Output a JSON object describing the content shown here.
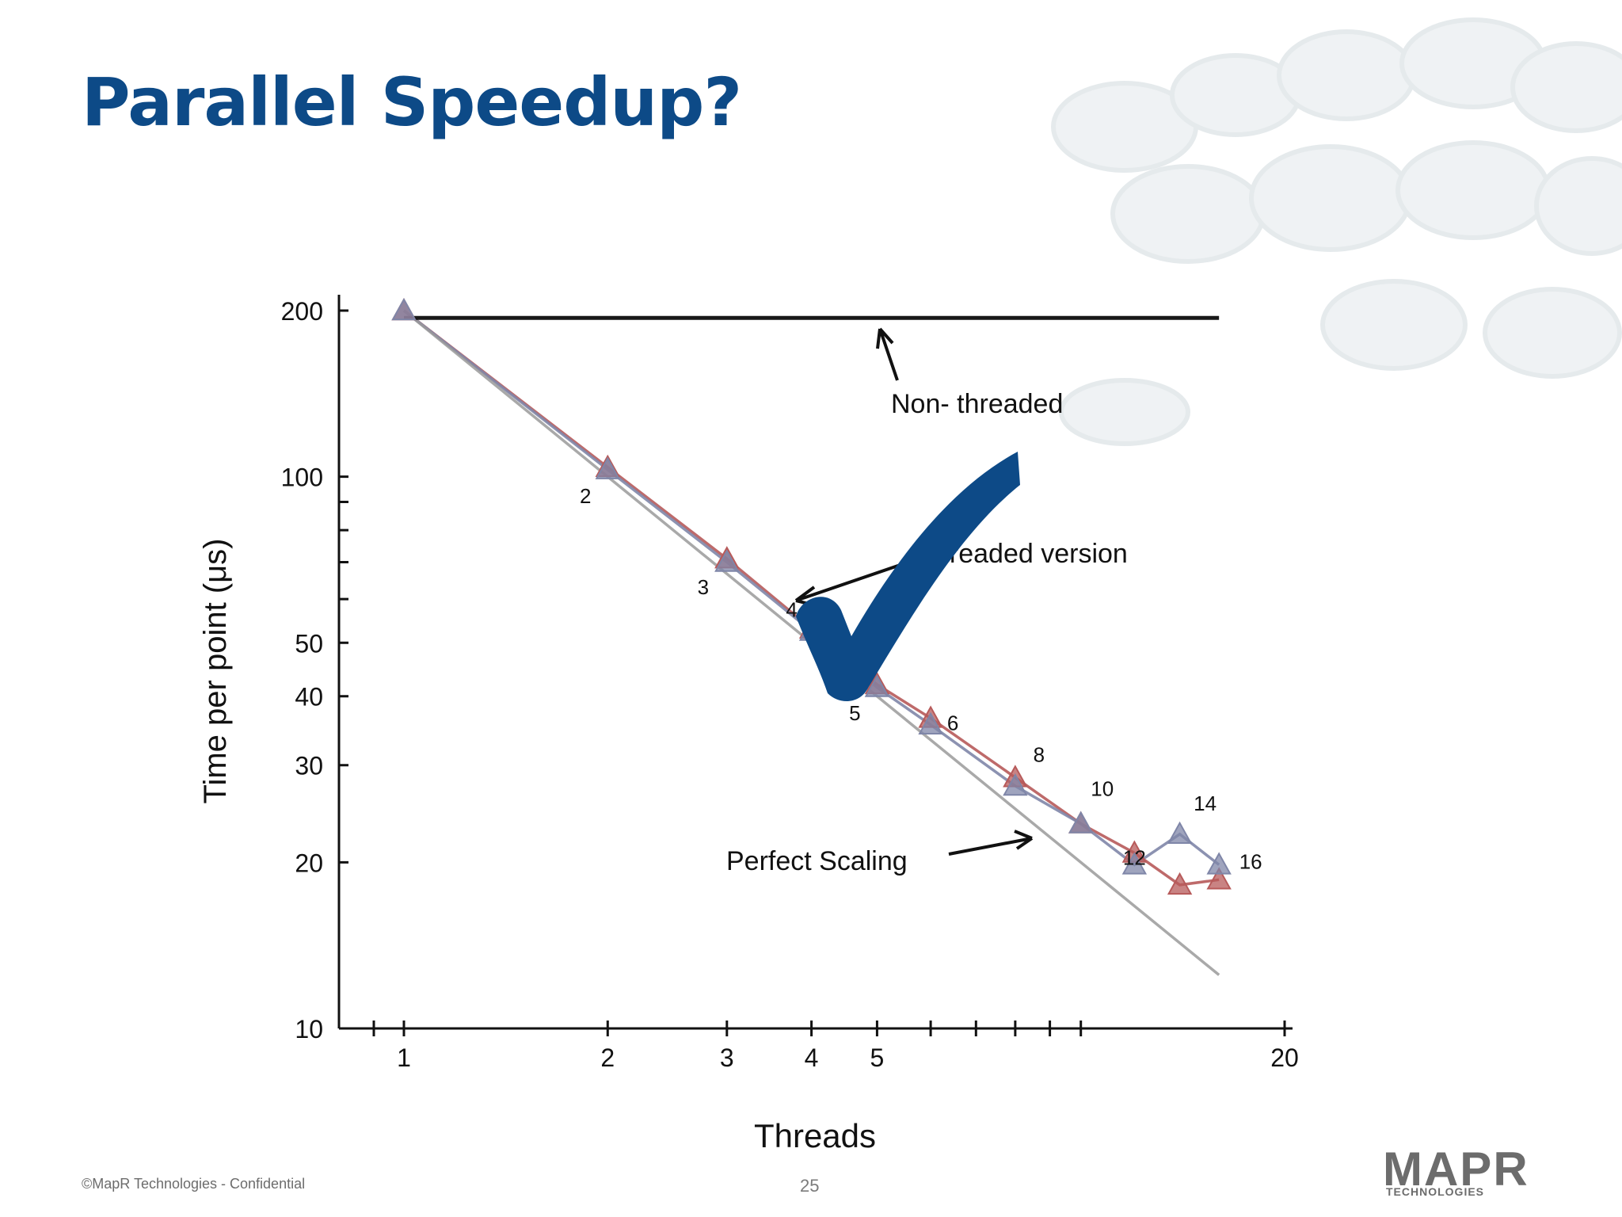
{
  "slide": {
    "title": "Parallel Speedup?",
    "footer_left": "©MapR Technologies - Confidential",
    "page_number": "25",
    "logo_text": "MAPR",
    "logo_sub": "TECHNOLOGIES",
    "title_color": "#0d4a87",
    "check_color": "#0d4a87"
  },
  "chart_data": {
    "type": "line",
    "title": "",
    "xlabel": "Threads",
    "ylabel": "Time per point (μs)",
    "xscale": "log",
    "yscale": "log",
    "xlim": [
      1,
      20
    ],
    "ylim": [
      10,
      200
    ],
    "x_ticks": [
      1,
      2,
      3,
      4,
      5,
      20
    ],
    "y_ticks": [
      10,
      20,
      30,
      40,
      50,
      100,
      200
    ],
    "series": [
      {
        "color": "#b75a5a",
        "marker": "triangle",
        "x": [
          1,
          2,
          3,
          4,
          5,
          6,
          8,
          10,
          12,
          14,
          16
        ],
        "y": [
          200,
          104,
          71,
          53,
          42,
          36.5,
          28.5,
          23.5,
          20.8,
          18.2,
          18.6
        ]
      },
      {
        "color": "#7f86a8",
        "marker": "triangle",
        "x": [
          1,
          2,
          3,
          4,
          5,
          6,
          8,
          10,
          12,
          14,
          16
        ],
        "y": [
          200,
          103,
          70,
          52.5,
          41.5,
          35.5,
          27.5,
          23.5,
          19.8,
          22.5,
          19.8
        ]
      },
      {
        "color": "#9a9a9a",
        "x": [
          1,
          16
        ],
        "y": [
          200,
          12.5
        ]
      },
      {
        "color": "#000000",
        "x": [
          1,
          16
        ],
        "y": [
          194,
          194
        ]
      }
    ],
    "point_labels": [
      {
        "text": "2",
        "x": 2,
        "y": 104
      },
      {
        "text": "3",
        "x": 3,
        "y": 71
      },
      {
        "text": "4",
        "x": 4,
        "y": 53
      },
      {
        "text": "5",
        "x": 5,
        "y": 42
      },
      {
        "text": "6",
        "x": 6,
        "y": 36.5
      },
      {
        "text": "8",
        "x": 8,
        "y": 28.5
      },
      {
        "text": "10",
        "x": 10,
        "y": 23.5
      },
      {
        "text": "12",
        "x": 12,
        "y": 20.8
      },
      {
        "text": "14",
        "x": 14,
        "y": 22.5
      },
      {
        "text": "16",
        "x": 16,
        "y": 19.8
      }
    ],
    "annotations": {
      "non_threaded": "Non- threaded",
      "threaded_version": "hreaded version",
      "perfect_scaling": "Perfect Scaling"
    }
  }
}
